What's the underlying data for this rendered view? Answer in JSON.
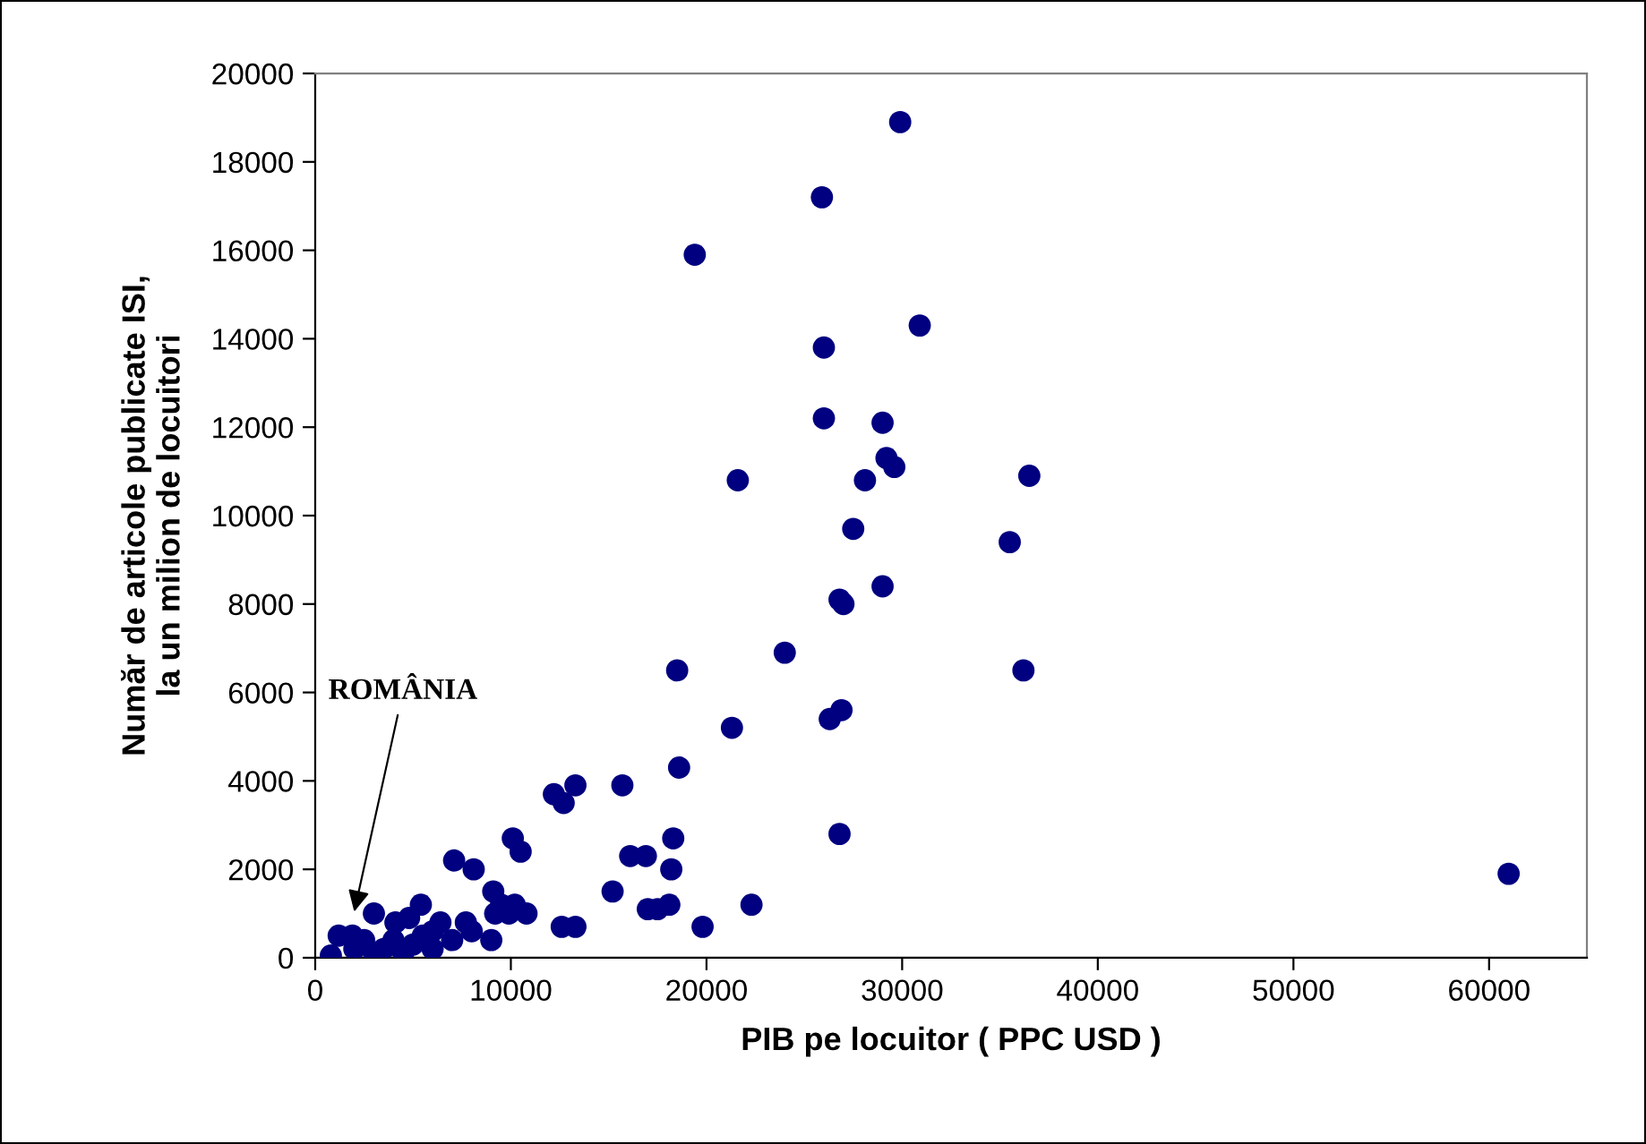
{
  "chart_data": {
    "type": "scatter",
    "xlabel": "PIB pe locuitor ( PPC USD )",
    "ylabel": "Număr de articole publicate ISI,\nla un milion de locuitori",
    "xlim": [
      0,
      65000
    ],
    "xticks": [
      0,
      10000,
      20000,
      30000,
      40000,
      50000,
      60000
    ],
    "ylim": [
      0,
      20000
    ],
    "yticks": [
      0,
      2000,
      4000,
      6000,
      8000,
      10000,
      12000,
      14000,
      16000,
      18000,
      20000
    ],
    "grid": false,
    "marker": "circle",
    "annotations": [
      {
        "text": "ROMÂNIA",
        "x": 1940,
        "y": 930
      }
    ],
    "series": [
      {
        "color": "#000080",
        "x": [
          29900,
          25900,
          19400,
          30900,
          26000,
          26000,
          29000,
          29200,
          29600,
          21600,
          28100,
          36500,
          27500,
          35500,
          29000,
          26800,
          27000,
          24000,
          18500,
          36200,
          21300,
          26300,
          26900,
          18600,
          12200,
          12700,
          13300,
          15700,
          10100,
          10500,
          18300,
          26800,
          7100,
          8100,
          16100,
          16900,
          18200,
          61000,
          9100,
          15200,
          17000,
          17500,
          18100,
          22300,
          19800,
          12600,
          13300,
          5400,
          3000,
          9500,
          10200,
          10800,
          9200,
          9900,
          6400,
          7700,
          9000,
          4100,
          4800,
          2000,
          2500,
          1200,
          3500,
          4000,
          5000,
          6000,
          5500,
          7000,
          3000,
          800,
          1900,
          8000,
          4500,
          6000
        ],
        "values": [
          18900,
          17200,
          15900,
          14300,
          13800,
          12200,
          12100,
          11300,
          11100,
          10800,
          10800,
          10900,
          9700,
          9400,
          8400,
          8100,
          8000,
          6900,
          6500,
          6500,
          5200,
          5400,
          5600,
          4300,
          3700,
          3500,
          3900,
          3900,
          2700,
          2400,
          2700,
          2800,
          2200,
          2000,
          2300,
          2300,
          2000,
          1900,
          1500,
          1500,
          1100,
          1100,
          1200,
          1200,
          700,
          700,
          700,
          1200,
          1000,
          1200,
          1200,
          1000,
          1000,
          1000,
          800,
          800,
          400,
          800,
          900,
          200,
          400,
          500,
          200,
          400,
          300,
          200,
          500,
          400,
          100,
          50,
          500,
          600,
          100,
          600
        ]
      }
    ]
  }
}
